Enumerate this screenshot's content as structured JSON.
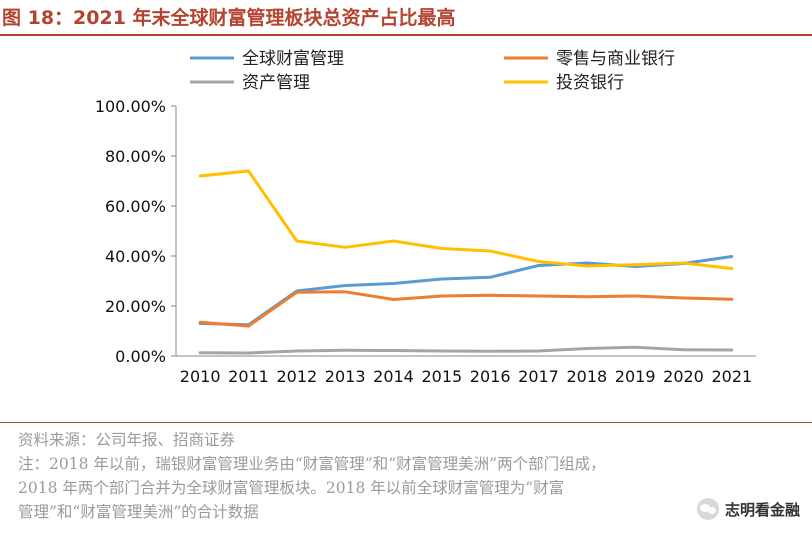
{
  "figure": {
    "title": "图 18：2021 年末全球财富管理板块总资产占比最高"
  },
  "chart_data": {
    "type": "line",
    "title": "",
    "xlabel": "",
    "ylabel": "",
    "categories": [
      "2010",
      "2011",
      "2012",
      "2013",
      "2014",
      "2015",
      "2016",
      "2017",
      "2018",
      "2019",
      "2020",
      "2021"
    ],
    "y_ticks": [
      "0.00%",
      "20.00%",
      "40.00%",
      "60.00%",
      "80.00%",
      "100.00%"
    ],
    "ylim": [
      0,
      100
    ],
    "grid": false,
    "legend_position": "top",
    "series": [
      {
        "name": "全球财富管理",
        "color": "#5b9bd5",
        "values": [
          13.0,
          12.5,
          26.0,
          28.2,
          29.0,
          30.8,
          31.5,
          36.2,
          37.2,
          35.8,
          37.0,
          39.8
        ]
      },
      {
        "name": "零售与商业银行",
        "color": "#ed7d31",
        "values": [
          13.5,
          12.0,
          25.5,
          25.7,
          22.6,
          24.0,
          24.3,
          24.0,
          23.7,
          24.0,
          23.2,
          22.7
        ]
      },
      {
        "name": "资产管理",
        "color": "#a5a5a5",
        "values": [
          1.3,
          1.2,
          2.0,
          2.3,
          2.2,
          2.0,
          1.9,
          2.0,
          3.0,
          3.5,
          2.5,
          2.4
        ]
      },
      {
        "name": "投资银行",
        "color": "#ffc000",
        "values": [
          72.0,
          74.0,
          46.0,
          43.5,
          46.0,
          43.0,
          42.0,
          37.8,
          36.0,
          36.5,
          37.2,
          35.0
        ]
      }
    ]
  },
  "notes": {
    "source": "资料来源：公司年报、招商证券",
    "note_line1": "注：2018 年以前，瑞银财富管理业务由“财富管理”和“财富管理美洲”两个部门组成，",
    "note_line2": "2018  年两个部门合并为全球财富管理板块。2018  年以前全球财富管理为“财富",
    "note_line3": "管理”和“财富管理美洲”的合计数据"
  },
  "watermark": {
    "text": "志明看金融",
    "icon": "wechat-icon"
  }
}
